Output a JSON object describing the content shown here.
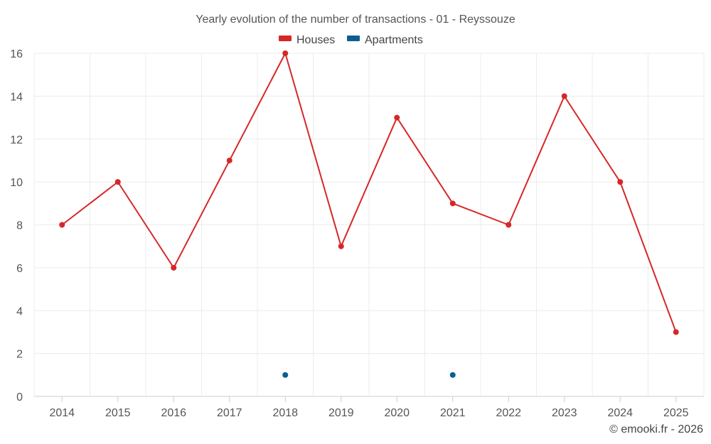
{
  "chart_data": {
    "type": "line",
    "title": "Yearly evolution of the number of transactions - 01 - Reyssouze",
    "categories": [
      "2014",
      "2015",
      "2016",
      "2017",
      "2018",
      "2019",
      "2020",
      "2021",
      "2022",
      "2023",
      "2024",
      "2025"
    ],
    "series": [
      {
        "name": "Houses",
        "color": "#d62728",
        "values": [
          8,
          10,
          6,
          11,
          16,
          7,
          13,
          9,
          8,
          14,
          10,
          3
        ]
      },
      {
        "name": "Apartments",
        "color": "#0b5f8f",
        "values": [
          null,
          null,
          null,
          null,
          1,
          null,
          null,
          1,
          null,
          null,
          null,
          null
        ]
      }
    ],
    "ylim": [
      0,
      16
    ],
    "yticks": [
      0,
      2,
      4,
      6,
      8,
      10,
      12,
      14,
      16
    ],
    "grid": true,
    "legend": "top-center",
    "xlabel": "",
    "ylabel": ""
  },
  "footer": {
    "credit": "© emooki.fr - 2026"
  }
}
